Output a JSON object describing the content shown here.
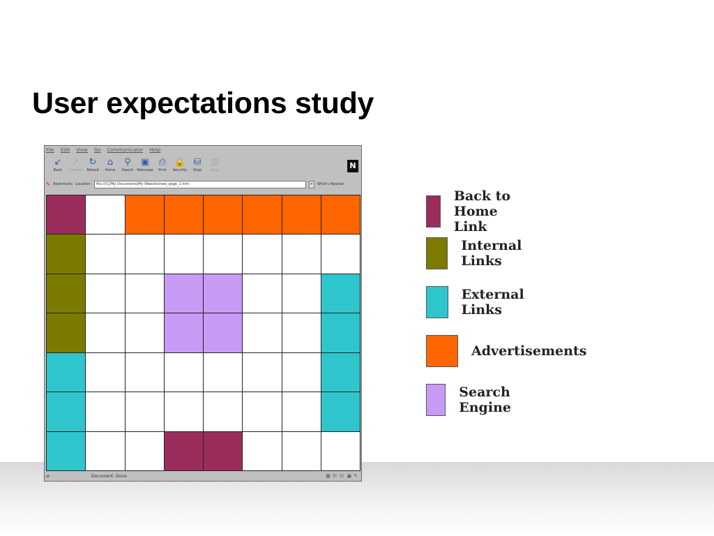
{
  "slide": {
    "title": "User expectations study"
  },
  "browser": {
    "menu": [
      "File",
      "Edit",
      "View",
      "Go",
      "Communicator",
      "Help"
    ],
    "toolbar": [
      {
        "label": "Back",
        "icon": "back-arrow-icon",
        "glyph": "↙",
        "enabled": true
      },
      {
        "label": "Forward",
        "icon": "forward-arrow-icon",
        "glyph": "↗",
        "enabled": false
      },
      {
        "label": "Reload",
        "icon": "reload-icon",
        "glyph": "↻",
        "enabled": true
      },
      {
        "label": "Home",
        "icon": "home-icon",
        "glyph": "⌂",
        "enabled": true
      },
      {
        "label": "Search",
        "icon": "search-icon",
        "glyph": "⚲",
        "enabled": true
      },
      {
        "label": "Netscape",
        "icon": "netscape-icon",
        "glyph": "▣",
        "enabled": true
      },
      {
        "label": "Print",
        "icon": "print-icon",
        "glyph": "⎙",
        "enabled": true
      },
      {
        "label": "Security",
        "icon": "security-lock-icon",
        "glyph": "🔒",
        "enabled": true
      },
      {
        "label": "Shop",
        "icon": "shop-icon",
        "glyph": "⛁",
        "enabled": true
      },
      {
        "label": "Stop",
        "icon": "stop-icon",
        "glyph": "▥",
        "enabled": false
      }
    ],
    "throbber": "N",
    "location": {
      "bookmarks_label": "Bookmarks",
      "location_label": "Location:",
      "url": "file:///C|/My Documents/My Website/new_page_1.htm",
      "whats_related": "What's Related"
    },
    "status": {
      "text": "Document: Done"
    }
  },
  "colors": {
    "back_home": "#9b2d5c",
    "internal": "#7b7b00",
    "external": "#2ec6cc",
    "ads": "#ff6600",
    "search": "#c79af6",
    "empty": "#ffffff"
  },
  "grid": {
    "rows": [
      [
        "back_home",
        "empty",
        "ads",
        "ads",
        "ads",
        "ads",
        "ads",
        "ads"
      ],
      [
        "internal",
        "empty",
        "empty",
        "empty",
        "empty",
        "empty",
        "empty",
        "empty"
      ],
      [
        "internal",
        "empty",
        "empty",
        "search",
        "search",
        "empty",
        "empty",
        "external"
      ],
      [
        "internal",
        "empty",
        "empty",
        "search",
        "search",
        "empty",
        "empty",
        "external"
      ],
      [
        "external",
        "empty",
        "empty",
        "empty",
        "empty",
        "empty",
        "empty",
        "external"
      ],
      [
        "external",
        "empty",
        "empty",
        "empty",
        "empty",
        "empty",
        "empty",
        "external"
      ],
      [
        "external",
        "empty",
        "empty",
        "back_home",
        "back_home",
        "empty",
        "empty",
        "empty"
      ]
    ]
  },
  "legend": [
    {
      "key": "back_home",
      "label": "Back to Home Link"
    },
    {
      "key": "internal",
      "label": "Internal Links"
    },
    {
      "key": "external",
      "label": "External Links"
    },
    {
      "key": "ads",
      "label": "Advertisements"
    },
    {
      "key": "search",
      "label": "Search Engine"
    }
  ]
}
